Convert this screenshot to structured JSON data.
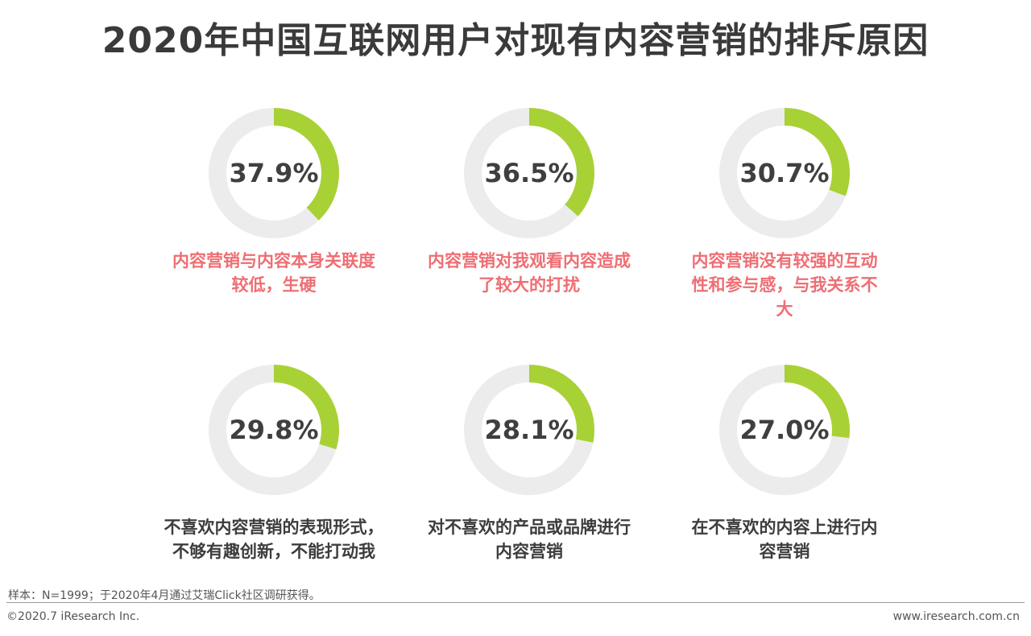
{
  "title": "2020年中国互联网用户对现有内容营销的排斥原因",
  "colors": {
    "accent": "#a8d136",
    "track": "#ececec",
    "top_label": "#ee6e73",
    "bottom_label": "#3d3d3d"
  },
  "chart_data": {
    "type": "donut",
    "items": [
      {
        "value": 37.9,
        "display": "37.9%",
        "label_lines": [
          "内容营销与内容本身关联度",
          "较低，生硬"
        ]
      },
      {
        "value": 36.5,
        "display": "36.5%",
        "label_lines": [
          "内容营销对我观看内容造成",
          "了较大的打扰"
        ]
      },
      {
        "value": 30.7,
        "display": "30.7%",
        "label_lines": [
          "内容营销没有较强的互动",
          "性和参与感，与我关系不",
          "大"
        ]
      },
      {
        "value": 29.8,
        "display": "29.8%",
        "label_lines": [
          "不喜欢内容营销的表现形式，",
          "不够有趣创新，不能打动我"
        ]
      },
      {
        "value": 28.1,
        "display": "28.1%",
        "label_lines": [
          "对不喜欢的产品或品牌进行",
          "内容营销"
        ]
      },
      {
        "value": 27.0,
        "display": "27.0%",
        "label_lines": [
          "在不喜欢的内容上进行内",
          "容营销"
        ]
      }
    ]
  },
  "footer": {
    "sample_note": "样本：N=1999；于2020年4月通过艾瑞Click社区调研获得。",
    "copyright": "©2020.7 iResearch Inc.",
    "website": "www.iresearch.com.cn"
  }
}
